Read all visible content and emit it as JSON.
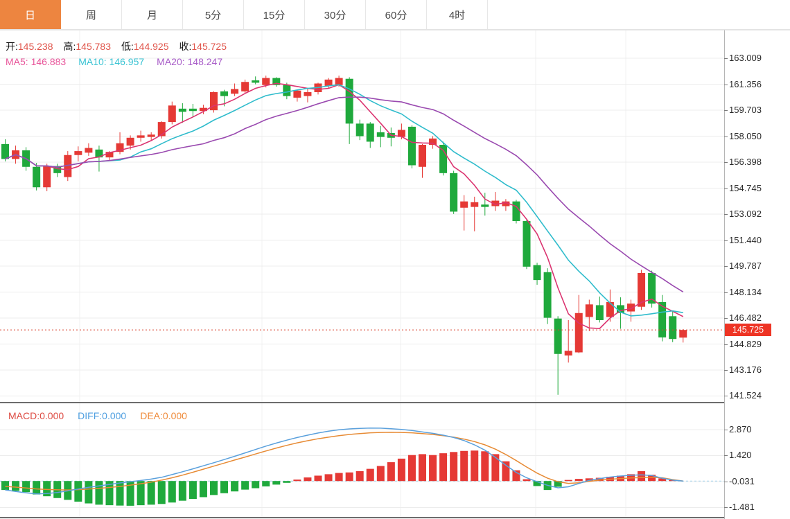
{
  "toolbar": {
    "timeframes": [
      {
        "name": "tab-day",
        "label": "日",
        "active": true
      },
      {
        "name": "tab-week",
        "label": "周",
        "active": false
      },
      {
        "name": "tab-month",
        "label": "月",
        "active": false
      },
      {
        "name": "tab-5min",
        "label": "5分",
        "active": false
      },
      {
        "name": "tab-15min",
        "label": "15分",
        "active": false
      },
      {
        "name": "tab-30min",
        "label": "30分",
        "active": false
      },
      {
        "name": "tab-60min",
        "label": "60分",
        "active": false
      },
      {
        "name": "tab-4hour",
        "label": "4时",
        "active": false
      }
    ]
  },
  "quote_bar": {
    "open_label": "开:",
    "open": "145.238",
    "high_label": "高:",
    "high": "145.783",
    "low_label": "低:",
    "low": "144.925",
    "close_label": "收:",
    "close": "145.725"
  },
  "ma_bar": {
    "ma5_label": "MA5:",
    "ma5": "146.883",
    "ma10_label": "MA10:",
    "ma10": "146.957",
    "ma20_label": "MA20:",
    "ma20": "148.247"
  },
  "macd_bar": {
    "macd_label": "MACD:",
    "macd": "0.000",
    "diff_label": "DIFF:",
    "diff": "0.000",
    "dea_label": "DEA:",
    "dea": "0.000"
  },
  "price_axis": {
    "ticks": [
      "163.009",
      "161.356",
      "159.703",
      "158.050",
      "156.398",
      "154.745",
      "153.092",
      "151.440",
      "149.787",
      "148.134",
      "146.482",
      "144.829",
      "143.176",
      "141.524"
    ],
    "last_price": "145.725"
  },
  "macd_axis": {
    "ticks": [
      "2.870",
      "1.420",
      "-0.031",
      "-1.481"
    ]
  },
  "colors": {
    "up": "#e53935",
    "down": "#1fa93c",
    "ma5": "#db3470",
    "ma10": "#2fbccc",
    "ma20": "#9a4ab0",
    "diff": "#5aa0dc",
    "dea": "#e78b35",
    "dotted_line": "#d9422f",
    "last_price_bg": "#ee3424",
    "active_tab": "#ed8540",
    "zero_line": "#a5d3ef",
    "grid": "#ececec",
    "vgrid": "#f2f2f2",
    "divider": "#3c3c3c",
    "axis_line": "#b5b5b5"
  },
  "chart_data": {
    "type": "candlestick+macd",
    "title": "",
    "price_pane": {
      "ylim": [
        141.1,
        164.8
      ],
      "yticks": [
        163.009,
        161.356,
        159.703,
        158.05,
        156.398,
        154.745,
        153.092,
        151.44,
        149.787,
        148.134,
        146.482,
        144.829,
        143.176,
        141.524
      ],
      "last_price": 145.725,
      "ma_periods": [
        5,
        10,
        20
      ],
      "candles": [
        [
          157.55,
          157.85,
          156.45,
          156.6
        ],
        [
          156.6,
          157.45,
          156.3,
          157.15
        ],
        [
          157.15,
          157.35,
          155.85,
          156.1
        ],
        [
          156.1,
          156.35,
          154.6,
          154.8
        ],
        [
          154.8,
          156.3,
          154.55,
          156.15
        ],
        [
          156.15,
          156.3,
          155.45,
          155.7
        ],
        [
          155.45,
          157.1,
          155.2,
          156.85
        ],
        [
          156.85,
          157.4,
          156.45,
          157.1
        ],
        [
          157.0,
          157.6,
          156.8,
          157.3
        ],
        [
          157.2,
          157.45,
          155.8,
          156.7
        ],
        [
          156.7,
          157.1,
          156.5,
          157.05
        ],
        [
          157.05,
          158.3,
          156.9,
          157.6
        ],
        [
          157.45,
          158.1,
          157.2,
          157.95
        ],
        [
          157.95,
          158.4,
          157.7,
          158.1
        ],
        [
          158.0,
          158.3,
          157.75,
          158.15
        ],
        [
          158.05,
          159.0,
          157.9,
          158.95
        ],
        [
          158.95,
          160.25,
          158.8,
          160.0
        ],
        [
          159.8,
          160.15,
          158.9,
          159.6
        ],
        [
          159.8,
          160.1,
          159.3,
          159.65
        ],
        [
          159.65,
          160.05,
          159.45,
          159.85
        ],
        [
          159.7,
          160.9,
          159.55,
          160.85
        ],
        [
          160.9,
          161.0,
          159.95,
          160.6
        ],
        [
          160.75,
          161.4,
          160.6,
          161.05
        ],
        [
          160.9,
          161.65,
          160.75,
          161.5
        ],
        [
          161.6,
          161.85,
          161.35,
          161.45
        ],
        [
          161.3,
          161.9,
          161.15,
          161.75
        ],
        [
          161.75,
          161.8,
          161.2,
          161.3
        ],
        [
          161.3,
          161.45,
          160.4,
          160.6
        ],
        [
          160.5,
          161.0,
          160.25,
          160.95
        ],
        [
          160.6,
          161.1,
          160.2,
          160.85
        ],
        [
          160.85,
          161.45,
          160.7,
          161.4
        ],
        [
          161.25,
          161.75,
          161.1,
          161.65
        ],
        [
          161.3,
          161.9,
          161.2,
          161.75
        ],
        [
          161.7,
          161.8,
          157.55,
          158.85
        ],
        [
          158.85,
          159.1,
          157.8,
          158.05
        ],
        [
          158.85,
          158.95,
          157.3,
          157.7
        ],
        [
          158.3,
          158.7,
          157.35,
          158.0
        ],
        [
          158.25,
          158.6,
          157.4,
          157.95
        ],
        [
          158.0,
          158.85,
          157.85,
          158.45
        ],
        [
          158.65,
          158.75,
          156.0,
          156.2
        ],
        [
          156.1,
          157.55,
          155.4,
          157.5
        ],
        [
          157.5,
          158.05,
          157.25,
          157.9
        ],
        [
          157.5,
          157.7,
          155.55,
          155.7
        ],
        [
          155.7,
          155.85,
          153.1,
          153.25
        ],
        [
          153.5,
          154.3,
          152.05,
          153.9
        ],
        [
          153.55,
          154.2,
          152.0,
          153.85
        ],
        [
          153.7,
          154.45,
          153.0,
          153.55
        ],
        [
          153.6,
          154.5,
          153.3,
          153.95
        ],
        [
          153.6,
          154.05,
          153.3,
          153.9
        ],
        [
          153.9,
          154.0,
          152.5,
          152.65
        ],
        [
          152.65,
          152.75,
          149.6,
          149.75
        ],
        [
          149.85,
          150.0,
          148.6,
          148.9
        ],
        [
          149.4,
          149.65,
          146.1,
          146.5
        ],
        [
          146.45,
          146.6,
          141.6,
          144.2
        ],
        [
          144.1,
          146.35,
          143.65,
          144.4
        ],
        [
          144.3,
          147.95,
          144.25,
          146.8
        ],
        [
          146.55,
          147.65,
          145.65,
          147.35
        ],
        [
          147.3,
          147.85,
          146.2,
          146.35
        ],
        [
          146.55,
          148.3,
          146.25,
          147.5
        ],
        [
          147.3,
          147.8,
          145.8,
          146.8
        ],
        [
          146.9,
          147.65,
          146.25,
          147.4
        ],
        [
          147.2,
          149.55,
          147.0,
          149.35
        ],
        [
          149.35,
          149.5,
          147.15,
          147.4
        ],
        [
          147.5,
          147.95,
          145.0,
          145.25
        ],
        [
          146.6,
          146.9,
          144.95,
          145.15
        ],
        [
          145.238,
          145.783,
          144.925,
          145.725
        ]
      ]
    },
    "macd_pane": {
      "ylim": [
        -2.2,
        3.3
      ],
      "yticks": [
        2.87,
        1.42,
        -0.031,
        -1.481
      ],
      "hist": [
        -0.5,
        -0.55,
        -0.62,
        -0.75,
        -0.85,
        -0.95,
        -1.05,
        -1.15,
        -1.25,
        -1.32,
        -1.35,
        -1.37,
        -1.38,
        -1.35,
        -1.32,
        -1.28,
        -1.2,
        -1.1,
        -1.0,
        -0.9,
        -0.78,
        -0.68,
        -0.58,
        -0.48,
        -0.4,
        -0.3,
        -0.2,
        -0.1,
        0.08,
        0.2,
        0.3,
        0.38,
        0.45,
        0.48,
        0.55,
        0.68,
        0.84,
        1.05,
        1.25,
        1.45,
        1.5,
        1.45,
        1.55,
        1.62,
        1.68,
        1.7,
        1.66,
        1.5,
        1.1,
        0.6,
        0.1,
        -0.28,
        -0.5,
        -0.32,
        0.06,
        0.12,
        0.15,
        0.18,
        0.24,
        0.3,
        0.38,
        0.55,
        0.35,
        0.15,
        0.05,
        0.0
      ],
      "diff": [
        -0.5,
        -0.58,
        -0.66,
        -0.72,
        -0.7,
        -0.64,
        -0.55,
        -0.45,
        -0.35,
        -0.27,
        -0.19,
        -0.11,
        -0.04,
        0.03,
        0.11,
        0.21,
        0.36,
        0.52,
        0.68,
        0.85,
        1.02,
        1.2,
        1.38,
        1.57,
        1.76,
        1.95,
        2.12,
        2.28,
        2.43,
        2.56,
        2.68,
        2.78,
        2.86,
        2.91,
        2.94,
        2.96,
        2.95,
        2.92,
        2.88,
        2.82,
        2.74,
        2.66,
        2.56,
        2.43,
        2.26,
        2.02,
        1.72,
        1.32,
        0.88,
        0.48,
        0.18,
        -0.04,
        -0.24,
        -0.38,
        -0.32,
        -0.14,
        0.04,
        0.14,
        0.22,
        0.28,
        0.32,
        0.35,
        0.31,
        0.16,
        0.05,
        0.0
      ],
      "dea": [
        -0.3,
        -0.34,
        -0.39,
        -0.44,
        -0.47,
        -0.49,
        -0.5,
        -0.48,
        -0.45,
        -0.41,
        -0.36,
        -0.3,
        -0.23,
        -0.15,
        -0.06,
        0.05,
        0.18,
        0.33,
        0.49,
        0.66,
        0.83,
        1.0,
        1.17,
        1.34,
        1.51,
        1.68,
        1.84,
        1.99,
        2.13,
        2.25,
        2.36,
        2.45,
        2.53,
        2.6,
        2.65,
        2.69,
        2.71,
        2.72,
        2.71,
        2.69,
        2.65,
        2.6,
        2.53,
        2.45,
        2.34,
        2.2,
        2.02,
        1.78,
        1.48,
        1.14,
        0.78,
        0.44,
        0.16,
        -0.04,
        -0.13,
        -0.1,
        -0.02,
        0.05,
        0.1,
        0.14,
        0.17,
        0.19,
        0.21,
        0.18,
        0.08,
        0.0
      ]
    }
  }
}
